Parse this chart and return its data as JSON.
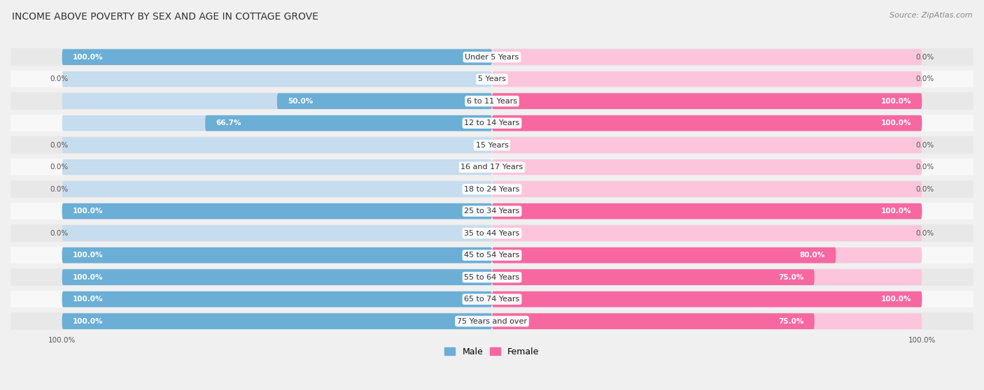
{
  "title": "INCOME ABOVE POVERTY BY SEX AND AGE IN COTTAGE GROVE",
  "source": "Source: ZipAtlas.com",
  "categories": [
    "Under 5 Years",
    "5 Years",
    "6 to 11 Years",
    "12 to 14 Years",
    "15 Years",
    "16 and 17 Years",
    "18 to 24 Years",
    "25 to 34 Years",
    "35 to 44 Years",
    "45 to 54 Years",
    "55 to 64 Years",
    "65 to 74 Years",
    "75 Years and over"
  ],
  "male_values": [
    100.0,
    0.0,
    50.0,
    66.7,
    0.0,
    0.0,
    0.0,
    100.0,
    0.0,
    100.0,
    100.0,
    100.0,
    100.0
  ],
  "female_values": [
    0.0,
    0.0,
    100.0,
    100.0,
    0.0,
    0.0,
    0.0,
    100.0,
    0.0,
    80.0,
    75.0,
    100.0,
    75.0
  ],
  "male_color": "#6baed6",
  "female_color": "#f768a1",
  "male_bg_color": "#c6dcef",
  "female_bg_color": "#fcc5dc",
  "male_label": "Male",
  "female_label": "Female",
  "bg_color": "#f0f0f0",
  "row_colors": [
    "#e8e8e8",
    "#f8f8f8"
  ],
  "max_value": 100.0,
  "title_fontsize": 10,
  "label_fontsize": 8,
  "value_fontsize": 7.5,
  "legend_fontsize": 9,
  "source_fontsize": 8
}
